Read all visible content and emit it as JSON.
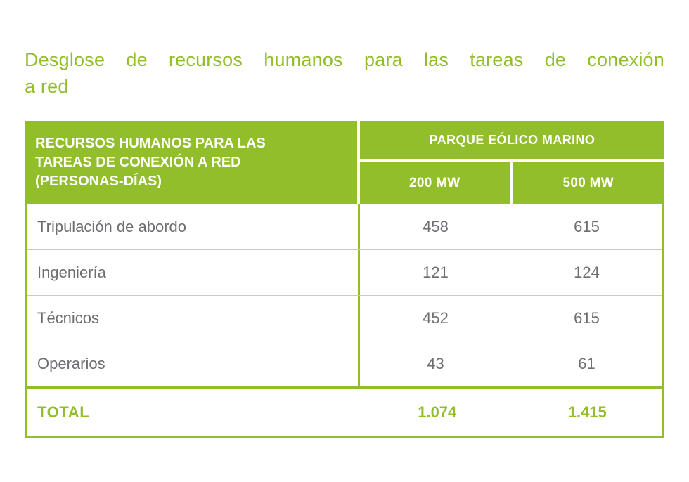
{
  "colors": {
    "green": "#92be2c",
    "body_text_gray": "#6d6e71",
    "row_divider_gray": "#c8c9ca",
    "header_text": "#ffffff",
    "background": "#ffffff"
  },
  "title": {
    "full_text": "Desglose de recursos humanos para las tareas de conexión a red",
    "line1": "Desglose de recursos humanos para las tareas de conexión",
    "line2": "a red"
  },
  "table": {
    "corner_header": {
      "full_text": "RECURSOS HUMANOS PARA LAS TAREAS DE CONEXIÓN A RED (PERSONAS-DÍAS)",
      "lines": [
        "RECURSOS HUMANOS PARA LAS",
        "TAREAS DE CONEXIÓN A RED",
        "(PERSONAS-DÍAS)"
      ]
    },
    "group_header": "PARQUE EÓLICO MARINO",
    "col_headers": [
      "200 MW",
      "500 MW"
    ],
    "rows": [
      {
        "label": "Tripulación de abordo",
        "mw200": "458",
        "mw500": "615"
      },
      {
        "label": "Ingeniería",
        "mw200": "121",
        "mw500": "124"
      },
      {
        "label": "Técnicos",
        "mw200": "452",
        "mw500": "615"
      },
      {
        "label": "Operarios",
        "mw200": "43",
        "mw500": "61"
      }
    ],
    "total": {
      "label": "TOTAL",
      "mw200": "1.074",
      "mw500": "1.415"
    }
  }
}
